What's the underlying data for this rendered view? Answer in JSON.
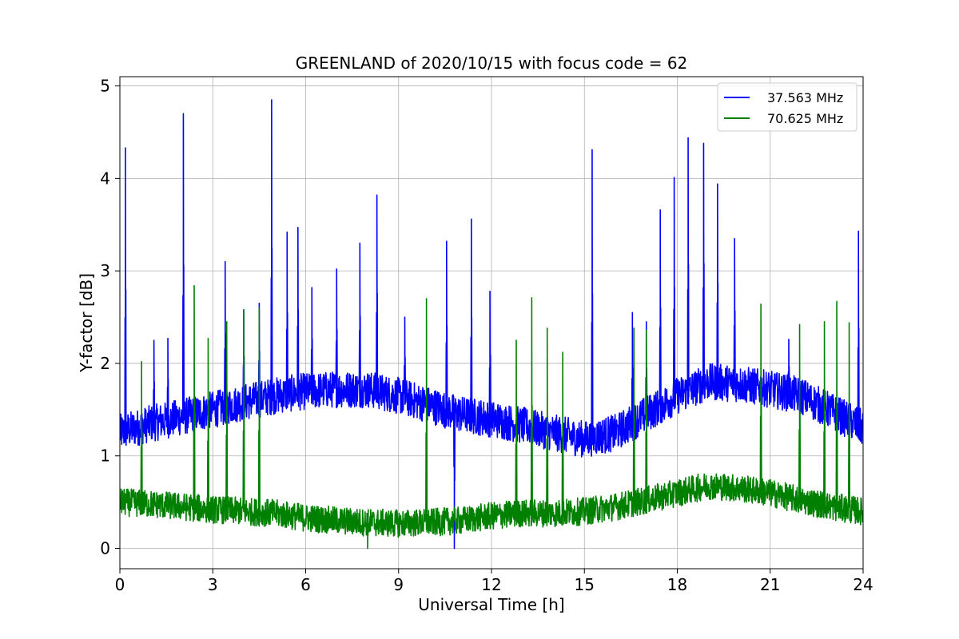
{
  "chart_data": {
    "type": "line",
    "title": "GREENLAND of 2020/10/15 with focus code = 62",
    "xlabel": "Universal Time [h]",
    "ylabel": "Y-factor [dB]",
    "xlim": [
      0,
      24
    ],
    "ylim": [
      -0.22,
      5.1
    ],
    "xticks": [
      0,
      3,
      6,
      9,
      12,
      15,
      18,
      21,
      24
    ],
    "yticks": [
      0,
      1,
      2,
      3,
      4,
      5
    ],
    "grid": true,
    "legend_position": "top-right",
    "series": [
      {
        "name": "37.563 MHz",
        "color": "#0000ff",
        "baseline": {
          "x": [
            0,
            1,
            2,
            3,
            4,
            5,
            6,
            7,
            8,
            9,
            10,
            11,
            12,
            13,
            14,
            15,
            16,
            17,
            18,
            19,
            20,
            21,
            22,
            23,
            24
          ],
          "y": [
            1.25,
            1.35,
            1.42,
            1.5,
            1.58,
            1.65,
            1.7,
            1.72,
            1.72,
            1.65,
            1.55,
            1.45,
            1.4,
            1.33,
            1.25,
            1.18,
            1.25,
            1.45,
            1.65,
            1.8,
            1.78,
            1.72,
            1.65,
            1.48,
            1.3
          ]
        },
        "noise_amplitude": 0.2,
        "spikes": [
          {
            "x": 0.18,
            "y": 4.33
          },
          {
            "x": 1.1,
            "y": 2.25
          },
          {
            "x": 1.55,
            "y": 2.27
          },
          {
            "x": 2.05,
            "y": 4.7
          },
          {
            "x": 3.4,
            "y": 3.1
          },
          {
            "x": 4.0,
            "y": 2.58
          },
          {
            "x": 4.5,
            "y": 2.65
          },
          {
            "x": 4.9,
            "y": 4.85
          },
          {
            "x": 5.4,
            "y": 3.42
          },
          {
            "x": 5.75,
            "y": 3.47
          },
          {
            "x": 6.2,
            "y": 2.82
          },
          {
            "x": 7.0,
            "y": 3.02
          },
          {
            "x": 7.75,
            "y": 3.3
          },
          {
            "x": 8.3,
            "y": 3.82
          },
          {
            "x": 9.2,
            "y": 2.5
          },
          {
            "x": 10.55,
            "y": 3.32
          },
          {
            "x": 11.35,
            "y": 3.56
          },
          {
            "x": 11.95,
            "y": 2.78
          },
          {
            "x": 15.25,
            "y": 4.31
          },
          {
            "x": 16.55,
            "y": 2.55
          },
          {
            "x": 17.0,
            "y": 2.45
          },
          {
            "x": 17.45,
            "y": 3.66
          },
          {
            "x": 17.9,
            "y": 4.01
          },
          {
            "x": 18.35,
            "y": 4.44
          },
          {
            "x": 18.85,
            "y": 4.38
          },
          {
            "x": 19.3,
            "y": 3.94
          },
          {
            "x": 19.85,
            "y": 3.35
          },
          {
            "x": 21.6,
            "y": 2.26
          },
          {
            "x": 23.85,
            "y": 3.43
          }
        ],
        "dips": [
          {
            "x": 10.8,
            "y": 0.0
          }
        ]
      },
      {
        "name": "70.625 MHz",
        "color": "#008000",
        "baseline": {
          "x": [
            0,
            1,
            2,
            3,
            4,
            5,
            6,
            7,
            8,
            9,
            10,
            11,
            12,
            13,
            14,
            15,
            16,
            17,
            18,
            19,
            20,
            21,
            22,
            23,
            24
          ],
          "y": [
            0.5,
            0.48,
            0.45,
            0.42,
            0.4,
            0.38,
            0.33,
            0.3,
            0.28,
            0.27,
            0.28,
            0.3,
            0.35,
            0.38,
            0.38,
            0.4,
            0.45,
            0.52,
            0.6,
            0.68,
            0.65,
            0.6,
            0.52,
            0.45,
            0.4
          ]
        },
        "noise_amplitude": 0.15,
        "spikes": [
          {
            "x": 0.7,
            "y": 2.02
          },
          {
            "x": 2.4,
            "y": 2.84
          },
          {
            "x": 2.85,
            "y": 2.27
          },
          {
            "x": 3.45,
            "y": 2.45
          },
          {
            "x": 4.0,
            "y": 2.58
          },
          {
            "x": 4.5,
            "y": 2.6
          },
          {
            "x": 9.9,
            "y": 2.7
          },
          {
            "x": 12.8,
            "y": 2.25
          },
          {
            "x": 13.3,
            "y": 2.71
          },
          {
            "x": 13.8,
            "y": 2.38
          },
          {
            "x": 14.3,
            "y": 2.12
          },
          {
            "x": 16.6,
            "y": 2.38
          },
          {
            "x": 17.0,
            "y": 2.36
          },
          {
            "x": 20.7,
            "y": 2.64
          },
          {
            "x": 21.95,
            "y": 2.42
          },
          {
            "x": 22.75,
            "y": 2.45
          },
          {
            "x": 23.15,
            "y": 2.67
          },
          {
            "x": 23.55,
            "y": 2.44
          }
        ],
        "dips": [
          {
            "x": 8.0,
            "y": 0.0
          }
        ]
      }
    ]
  }
}
